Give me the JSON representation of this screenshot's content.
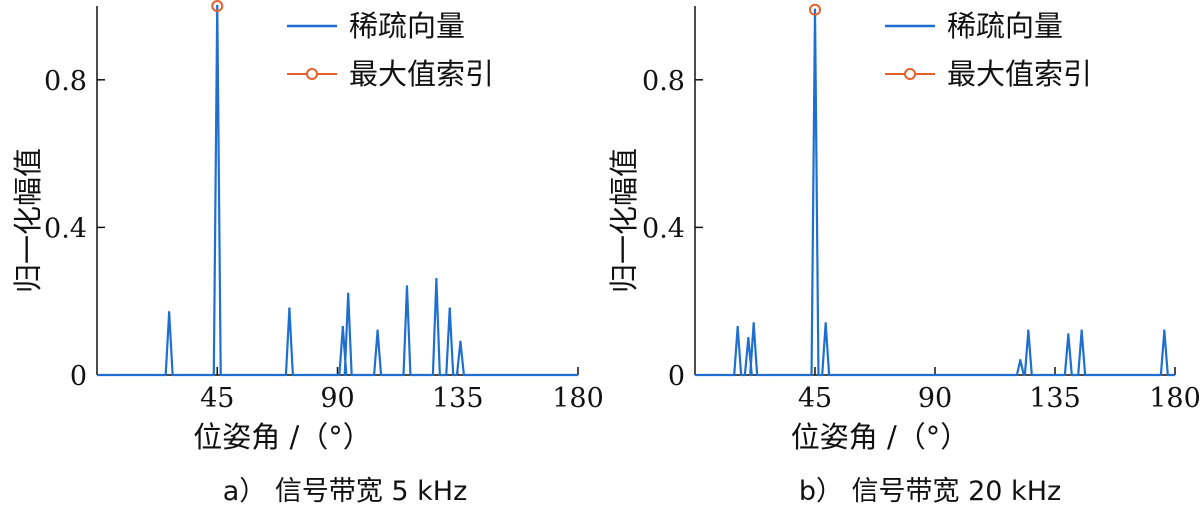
{
  "chart_data": [
    {
      "type": "line",
      "caption": "a） 信号带宽 5 kHz",
      "xlabel": "位姿角 /（°）",
      "ylabel": "归一化幅值",
      "xlim": [
        0,
        180
      ],
      "ylim": [
        0,
        1
      ],
      "xticks": [
        "45",
        "90",
        "135",
        "180"
      ],
      "yticks": [
        "0",
        "0.4",
        "0.8"
      ],
      "legend": {
        "placement": "top-right",
        "entries": [
          "稀疏向量",
          "最大值索引"
        ]
      },
      "series": [
        {
          "name": "稀疏向量",
          "color": "#1f6fd0",
          "peaks": [
            [
              27,
              0.17
            ],
            [
              45,
              1.0
            ],
            [
              72,
              0.18
            ],
            [
              92,
              0.13
            ],
            [
              94,
              0.22
            ],
            [
              105,
              0.12
            ],
            [
              116,
              0.24
            ],
            [
              127,
              0.26
            ],
            [
              132,
              0.18
            ],
            [
              136,
              0.09
            ]
          ]
        },
        {
          "name": "最大值索引",
          "color": "#e4602b",
          "points": [
            [
              45,
              1.0
            ]
          ]
        }
      ]
    },
    {
      "type": "line",
      "caption": "b） 信号带宽 20 kHz",
      "xlabel": "位姿角 /（°）",
      "ylabel": "归一化幅值",
      "xlim": [
        0,
        180
      ],
      "ylim": [
        0,
        1
      ],
      "xticks": [
        "45",
        "90",
        "135",
        "180"
      ],
      "yticks": [
        "0",
        "0.4",
        "0.8"
      ],
      "legend": {
        "placement": "top-right",
        "entries": [
          "稀疏向量",
          "最大值索引"
        ]
      },
      "series": [
        {
          "name": "稀疏向量",
          "color": "#1f6fd0",
          "peaks": [
            [
              16,
              0.13
            ],
            [
              20,
              0.1
            ],
            [
              22,
              0.14
            ],
            [
              45,
              0.99
            ],
            [
              49,
              0.14
            ],
            [
              122,
              0.04
            ],
            [
              125,
              0.12
            ],
            [
              140,
              0.11
            ],
            [
              145,
              0.12
            ],
            [
              176,
              0.12
            ]
          ]
        },
        {
          "name": "最大值索引",
          "color": "#e4602b",
          "points": [
            [
              45,
              0.99
            ]
          ]
        }
      ]
    }
  ]
}
